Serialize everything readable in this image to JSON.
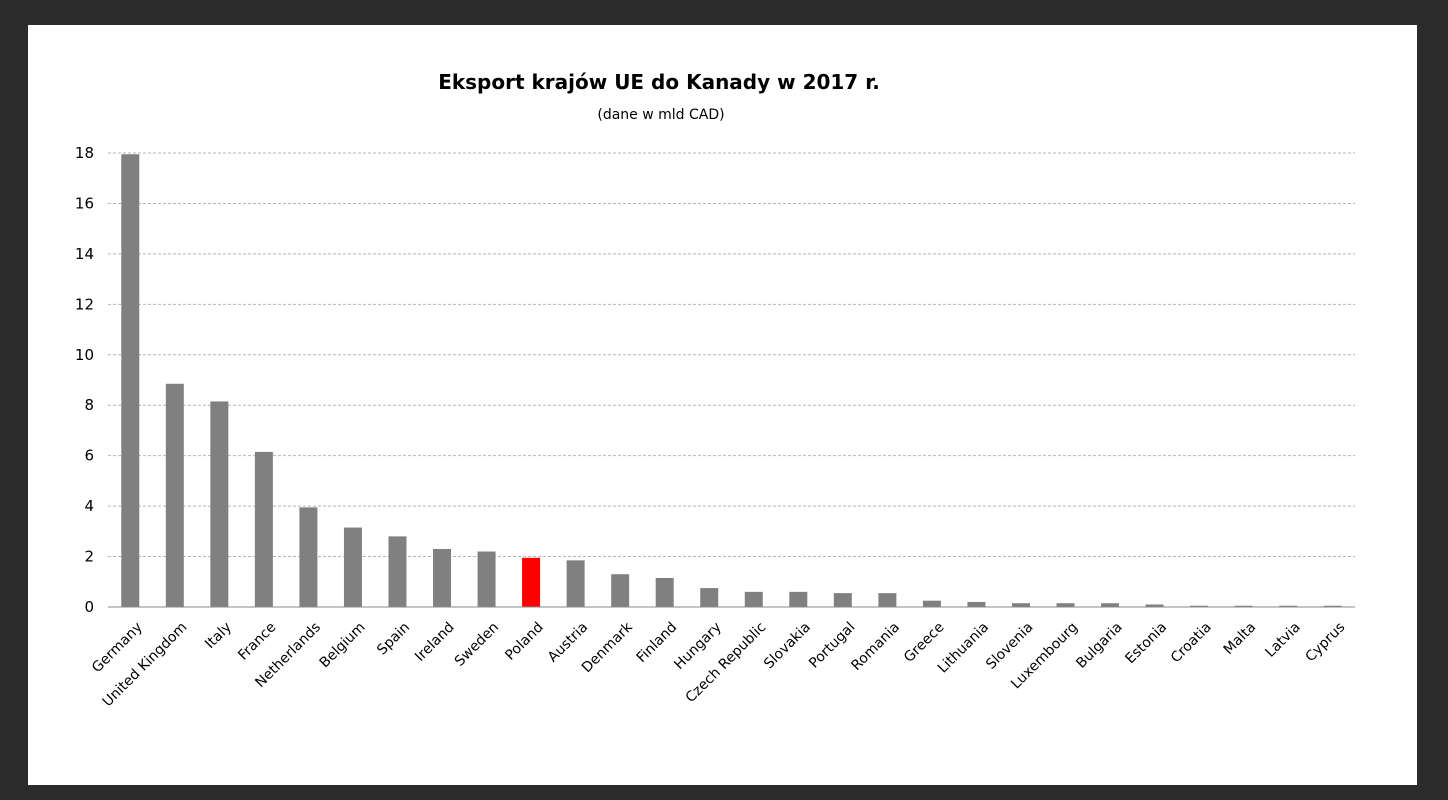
{
  "chart_data": {
    "type": "bar",
    "title": "Eksport krajów UE do Kanady w 2017 r.",
    "subtitle": "(dane w mld CAD)",
    "xlabel": "",
    "ylabel": "",
    "ylim": [
      0,
      18
    ],
    "yticks": [
      0,
      2,
      4,
      6,
      8,
      10,
      12,
      14,
      16,
      18
    ],
    "grid": true,
    "legend": "none",
    "categories": [
      "Germany",
      "United Kingdom",
      "Italy",
      "France",
      "Netherlands",
      "Belgium",
      "Spain",
      "Ireland",
      "Sweden",
      "Poland",
      "Austria",
      "Denmark",
      "Finland",
      "Hungary",
      "Czech Republic",
      "Slovakia",
      "Portugal",
      "Romania",
      "Greece",
      "Lithuania",
      "Slovenia",
      "Luxembourg",
      "Bulgaria",
      "Estonia",
      "Croatia",
      "Malta",
      "Latvia",
      "Cyprus"
    ],
    "values": [
      17.95,
      8.85,
      8.15,
      6.15,
      3.95,
      3.15,
      2.8,
      2.3,
      2.2,
      1.95,
      1.85,
      1.3,
      1.15,
      0.75,
      0.6,
      0.6,
      0.55,
      0.55,
      0.25,
      0.2,
      0.15,
      0.15,
      0.15,
      0.1,
      0.05,
      0.05,
      0.05,
      0.05
    ],
    "bar_color": "#808080",
    "highlight_category": "Poland",
    "highlight_color": "#ff0000"
  }
}
